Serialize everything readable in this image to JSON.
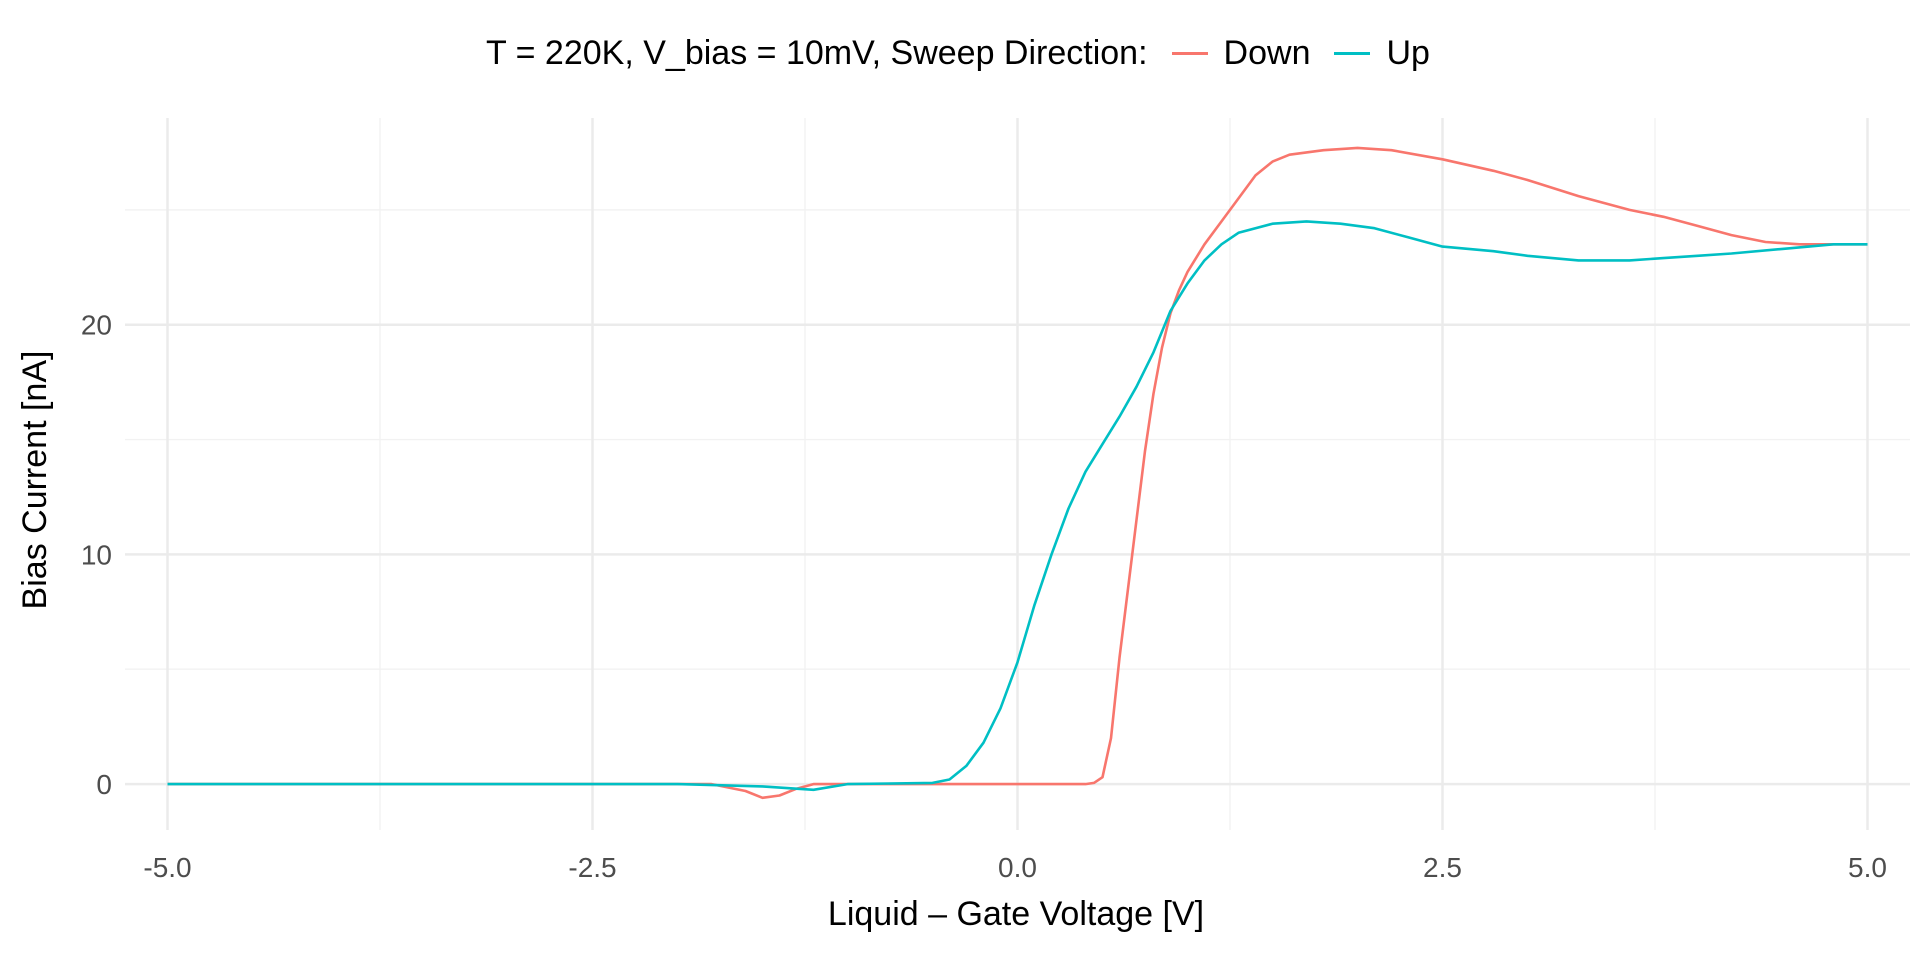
{
  "chart_data": {
    "type": "line",
    "legend": {
      "title": "T = 220K, V_bias = 10mV, Sweep Direction:",
      "position": "top"
    },
    "xlabel": "Liquid – Gate Voltage [V]",
    "ylabel": "Bias Current [nA]",
    "xlim": [
      -5.25,
      5.25
    ],
    "ylim": [
      -2,
      29
    ],
    "x_ticks": [
      -5.0,
      -2.5,
      0.0,
      2.5,
      5.0
    ],
    "x_tick_labels": [
      "-5.0",
      "-2.5",
      "0.0",
      "2.5",
      "5.0"
    ],
    "y_ticks": [
      0,
      10,
      20
    ],
    "y_tick_labels": [
      "0",
      "10",
      "20"
    ],
    "x_minor_ticks": [
      -3.75,
      -1.25,
      1.25,
      3.75
    ],
    "y_minor_ticks": [
      5,
      15,
      25
    ],
    "grid": true,
    "series": [
      {
        "name": "Down",
        "color": "#F8766D",
        "x": [
          -5.0,
          -4.0,
          -3.0,
          -2.0,
          -1.8,
          -1.6,
          -1.5,
          -1.4,
          -1.3,
          -1.2,
          -1.0,
          0.0,
          0.3,
          0.4,
          0.45,
          0.5,
          0.55,
          0.6,
          0.65,
          0.7,
          0.75,
          0.8,
          0.85,
          0.9,
          0.95,
          1.0,
          1.1,
          1.2,
          1.3,
          1.4,
          1.5,
          1.6,
          1.8,
          2.0,
          2.2,
          2.5,
          2.8,
          3.0,
          3.3,
          3.6,
          3.8,
          4.0,
          4.2,
          4.4,
          4.6,
          4.8,
          5.0
        ],
        "y": [
          0,
          0,
          0,
          0,
          0,
          -0.3,
          -0.6,
          -0.5,
          -0.2,
          0,
          0,
          0,
          0,
          0,
          0.05,
          0.3,
          2.0,
          5.5,
          8.5,
          11.5,
          14.5,
          17.0,
          19.0,
          20.5,
          21.5,
          22.3,
          23.5,
          24.5,
          25.5,
          26.5,
          27.1,
          27.4,
          27.6,
          27.7,
          27.6,
          27.2,
          26.7,
          26.3,
          25.6,
          25.0,
          24.7,
          24.3,
          23.9,
          23.6,
          23.5,
          23.5,
          23.5
        ]
      },
      {
        "name": "Up",
        "color": "#00BFC4",
        "x": [
          -5.0,
          -4.0,
          -3.0,
          -2.0,
          -1.5,
          -1.2,
          -1.0,
          -0.5,
          -0.4,
          -0.3,
          -0.2,
          -0.1,
          0.0,
          0.1,
          0.2,
          0.3,
          0.4,
          0.5,
          0.6,
          0.7,
          0.8,
          0.9,
          1.0,
          1.1,
          1.2,
          1.3,
          1.5,
          1.7,
          1.9,
          2.1,
          2.3,
          2.5,
          2.8,
          3.0,
          3.3,
          3.6,
          3.8,
          4.0,
          4.2,
          4.5,
          4.8,
          5.0
        ],
        "y": [
          0,
          0,
          0,
          0,
          -0.1,
          -0.25,
          0,
          0.05,
          0.2,
          0.8,
          1.8,
          3.3,
          5.3,
          7.8,
          10.0,
          12.0,
          13.6,
          14.8,
          16.0,
          17.3,
          18.8,
          20.6,
          21.8,
          22.8,
          23.5,
          24.0,
          24.4,
          24.5,
          24.4,
          24.2,
          23.8,
          23.4,
          23.2,
          23.0,
          22.8,
          22.8,
          22.9,
          23.0,
          23.1,
          23.3,
          23.5,
          23.5
        ]
      }
    ]
  }
}
